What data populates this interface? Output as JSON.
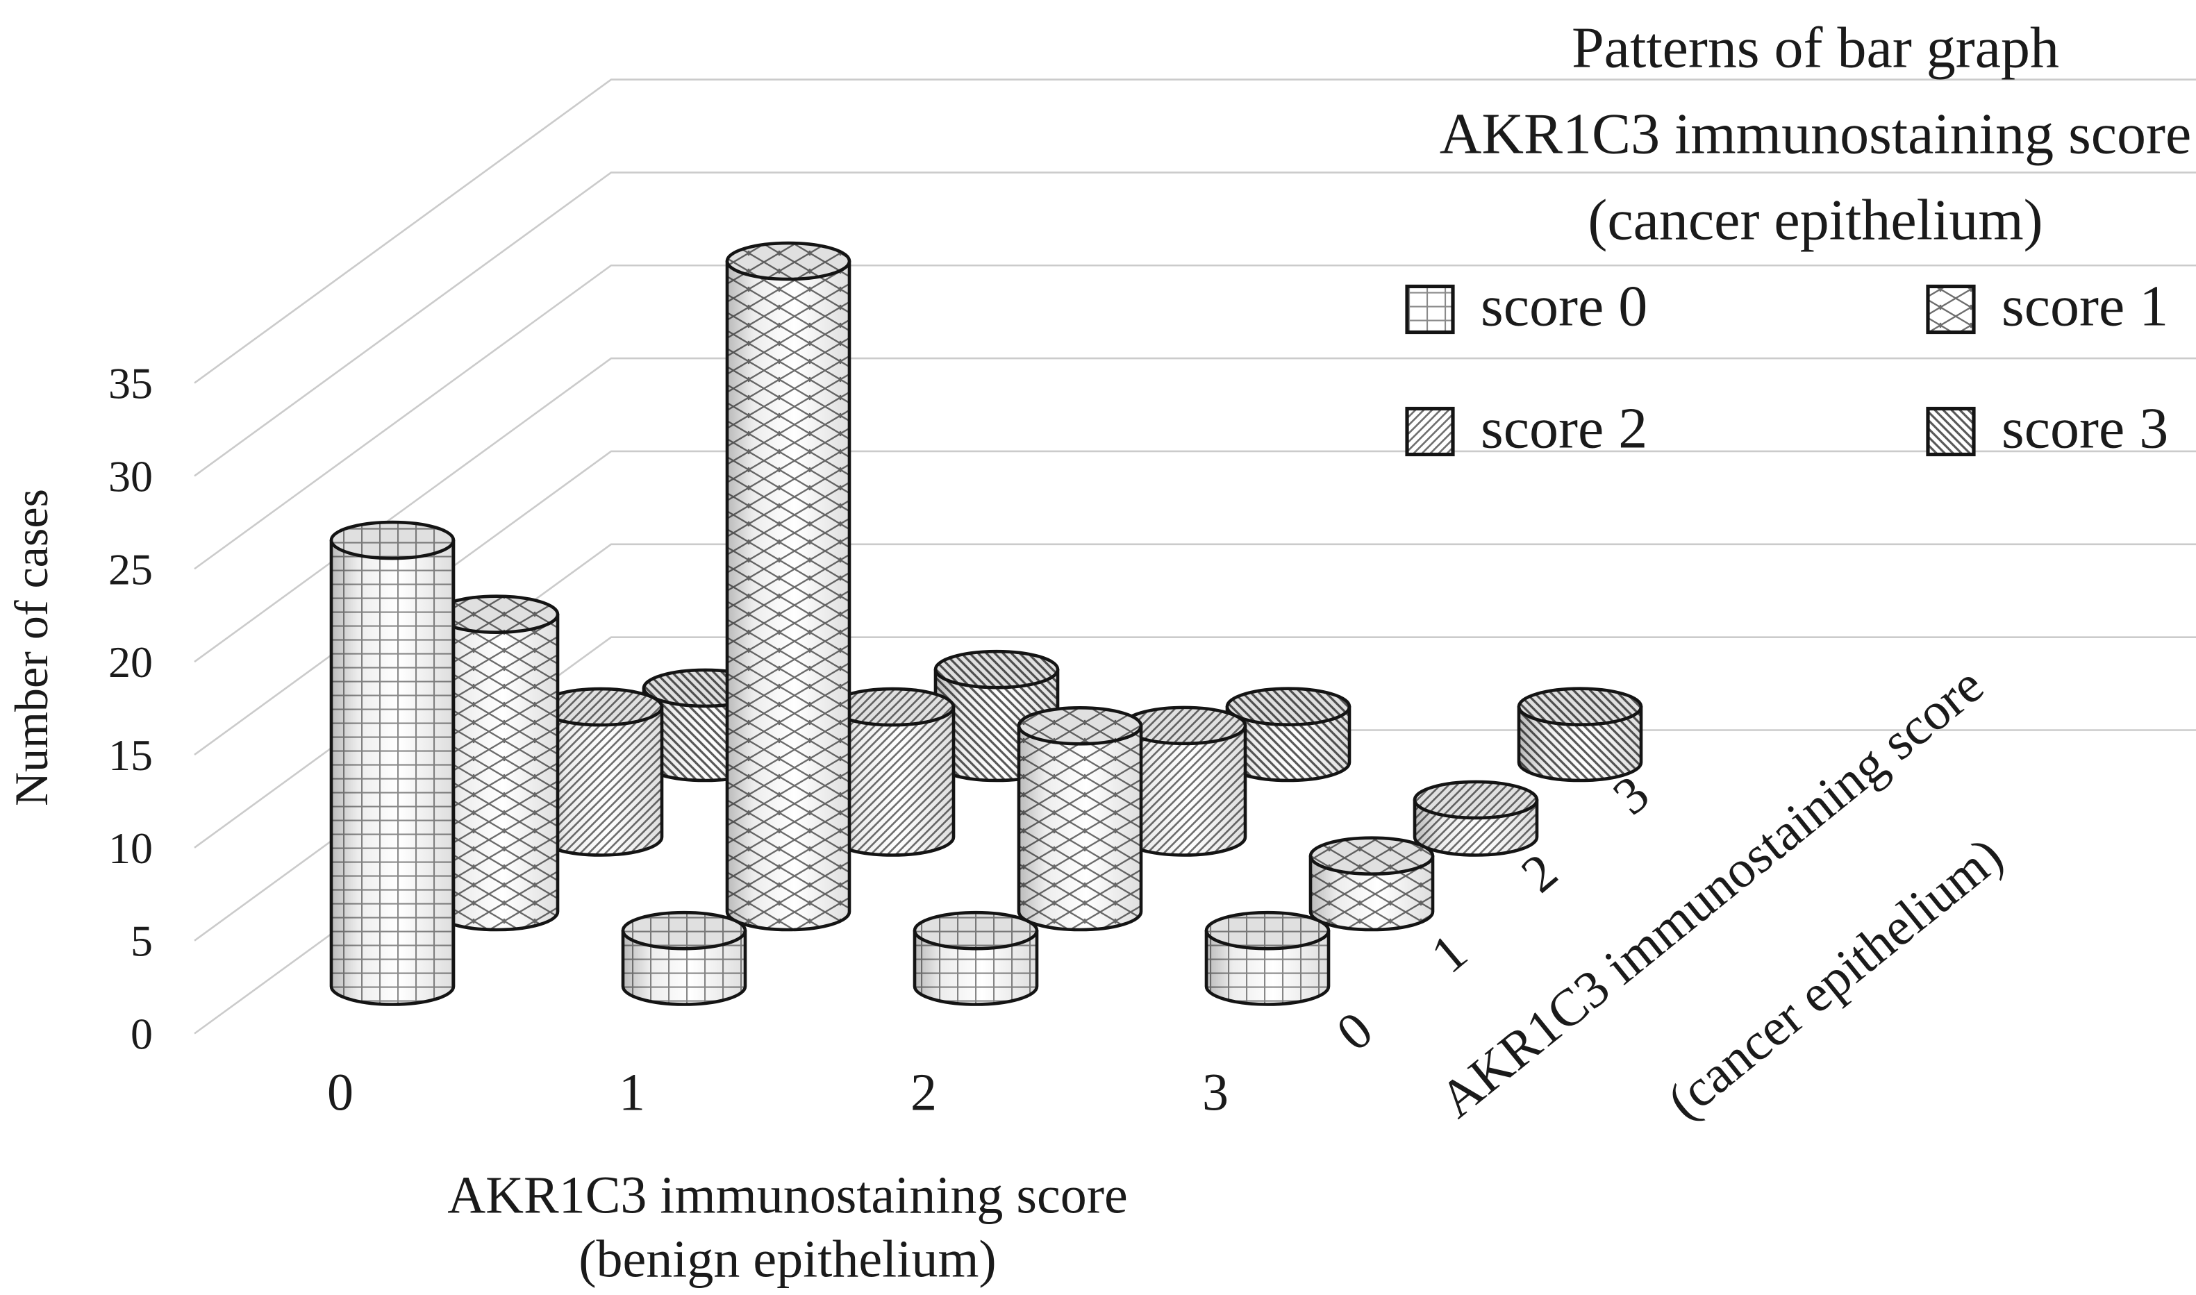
{
  "title": {
    "line1": "Patterns of bar graph",
    "line2": "AKR1C3 immunostaining score",
    "line3": "(cancer epithelium)"
  },
  "legend": {
    "items": [
      {
        "label": "score 0",
        "pattern": "grid"
      },
      {
        "label": "score 1",
        "pattern": "diamond-lattice"
      },
      {
        "label": "score 2",
        "pattern": "diagonal-up"
      },
      {
        "label": "score 3",
        "pattern": "diagonal-down"
      }
    ]
  },
  "y_axis": {
    "title": "Number of cases",
    "tick_labels": [
      "0",
      "5",
      "10",
      "15",
      "20",
      "25",
      "30",
      "35"
    ]
  },
  "x_axis": {
    "title_line1": "AKR1C3 immunostaining score",
    "title_line2": "(benign epithelium)",
    "labels": [
      "0",
      "1",
      "2",
      "3"
    ]
  },
  "depth_axis": {
    "title_line1": "AKR1C3 immunostaining score",
    "title_line2": "(cancer epithelium)",
    "labels": [
      "0",
      "1",
      "2",
      "3"
    ]
  },
  "chart_data": {
    "type": "bar",
    "subtype": "3d-cylinder-bar",
    "title": "Patterns of bar graph AKR1C3 immunostaining score (cancer epithelium)",
    "categories": [
      "0",
      "1",
      "2",
      "3"
    ],
    "x_axis_title": "AKR1C3 immunostaining score (benign epithelium)",
    "series_axis_title": "AKR1C3 immunostaining score (cancer epithelium)",
    "series_axis_labels": [
      "0",
      "1",
      "2",
      "3"
    ],
    "ylabel": "Number of cases",
    "ylim": [
      0,
      35
    ],
    "yticks": [
      0,
      5,
      10,
      15,
      20,
      25,
      30,
      35
    ],
    "grid": true,
    "legend_position": "top-right",
    "series": [
      {
        "name": "score 0",
        "pattern": "grid",
        "values": [
          24,
          3,
          3,
          3
        ]
      },
      {
        "name": "score 1",
        "pattern": "diamond-lattice",
        "values": [
          16,
          35,
          10,
          3
        ]
      },
      {
        "name": "score 2",
        "pattern": "diagonal-up",
        "values": [
          7,
          7,
          6,
          2
        ]
      },
      {
        "name": "score 3",
        "pattern": "diagonal-down",
        "values": [
          4,
          5,
          3,
          3
        ]
      }
    ]
  }
}
